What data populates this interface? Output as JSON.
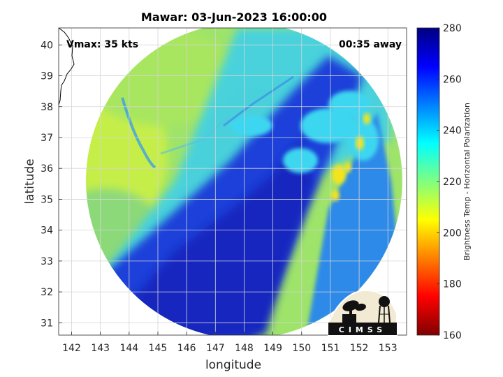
{
  "chart_data": {
    "type": "heatmap",
    "title": "Mawar: 03-Jun-2023 16:00:00",
    "annotations": {
      "vmax": "Vmax: 35 kts",
      "time_away": "00:35 away"
    },
    "xlabel": "longitude",
    "ylabel": "latitude",
    "xlim": [
      141.55,
      153.65
    ],
    "ylim": [
      30.6,
      40.55
    ],
    "x_ticks": [
      142,
      143,
      144,
      145,
      146,
      147,
      148,
      149,
      150,
      151,
      152,
      153
    ],
    "y_ticks": [
      31,
      32,
      33,
      34,
      35,
      36,
      37,
      38,
      39,
      40
    ],
    "grid": true,
    "swath": {
      "center_lon": 148.0,
      "center_lat": 35.6,
      "radius_deg": 5.5
    },
    "colorbar": {
      "label": "Brightness Temp - Horizontal Polarization",
      "limits": [
        160,
        280
      ],
      "ticks": [
        160,
        180,
        200,
        220,
        240,
        260,
        280
      ],
      "colormap": "jet"
    },
    "field_features": [
      {
        "region": "northwest of swath",
        "value_approx": 218,
        "description": "warm green-yellow background"
      },
      {
        "region": "central diagonal band (SW to NE)",
        "value_approx": 262,
        "description": "cold dark blue band"
      },
      {
        "region": "east sector near 151.5E 35.5N",
        "value_approx": 212,
        "description": "yellow warm spots"
      },
      {
        "region": "east wedge 151-153.5E",
        "value_approx": 252,
        "description": "medium blue region"
      }
    ],
    "logo": {
      "text": "CIMSS",
      "placement": "bottom-right"
    },
    "coastline": {
      "placement": "top-left corner"
    }
  }
}
